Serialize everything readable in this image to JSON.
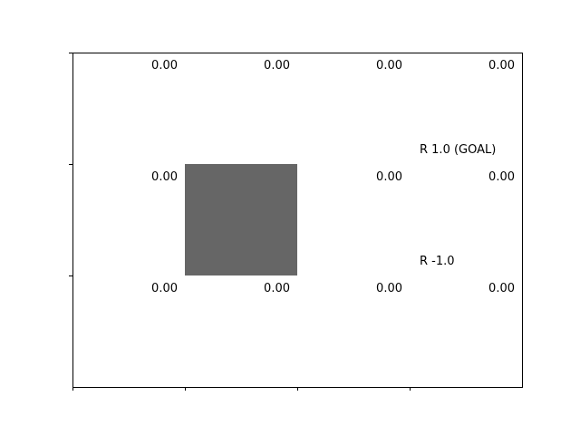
{
  "chart_data": {
    "type": "gridworld",
    "rows": 3,
    "cols": 4,
    "values": [
      [
        "0.00",
        "0.00",
        "0.00",
        "0.00"
      ],
      [
        "0.00",
        null,
        "0.00",
        "0.00"
      ],
      [
        "0.00",
        "0.00",
        "0.00",
        "0.00"
      ]
    ],
    "wall": {
      "row": 1,
      "col": 1
    },
    "rewards": [
      {
        "row": 0,
        "col": 3,
        "label": "R 1.0 (GOAL)"
      },
      {
        "row": 1,
        "col": 3,
        "label": "R -1.0"
      }
    ],
    "xlabel": "",
    "ylabel": "",
    "grid": false,
    "wall_color": "#666666"
  }
}
